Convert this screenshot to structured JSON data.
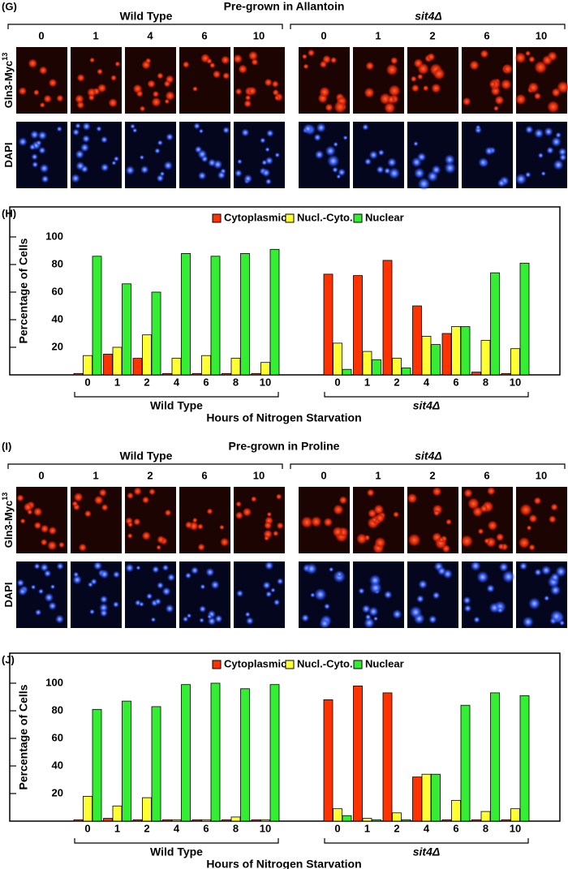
{
  "image_panels": [
    {
      "label": "(G)",
      "title": "Pre-grown in Allantoin",
      "groups": [
        {
          "name": "Wild Type",
          "times": [
            "0",
            "1",
            "4",
            "6",
            "10"
          ]
        },
        {
          "name": "sit4Δ",
          "times": [
            "0",
            "1",
            "2",
            "6",
            "10"
          ]
        }
      ],
      "rows": [
        {
          "text": "Gln3-Myc",
          "sup": "13"
        },
        {
          "text": "DAPI"
        }
      ]
    },
    {
      "label": "(I)",
      "title": "Pre-grown in Proline",
      "groups": [
        {
          "name": "Wild Type",
          "times": [
            "0",
            "1",
            "2",
            "6",
            "10"
          ]
        },
        {
          "name": "sit4Δ",
          "times": [
            "0",
            "1",
            "2",
            "6",
            "10"
          ]
        }
      ],
      "rows": [
        {
          "text": "Gln3-Myc",
          "sup": "13"
        },
        {
          "text": "DAPI"
        }
      ]
    }
  ],
  "chart_data": [
    {
      "type": "bar",
      "label": "(H)",
      "ylabel": "Percentage of Cells",
      "xlabel": "Hours of Nitrogen Starvation",
      "groups": [
        "Wild Type",
        "sit4Δ"
      ],
      "categories": [
        "0",
        "1",
        "2",
        "4",
        "6",
        "8",
        "10",
        "0",
        "1",
        "2",
        "4",
        "6",
        "8",
        "10"
      ],
      "series": [
        {
          "name": "Cytoplasmic",
          "color": "#ff3300",
          "values": [
            1,
            15,
            12,
            1,
            1,
            1,
            1,
            73,
            72,
            83,
            50,
            30,
            2,
            1
          ]
        },
        {
          "name": "Nucl.-Cyto.",
          "color": "#ffff33",
          "values": [
            14,
            20,
            29,
            12,
            14,
            12,
            9,
            23,
            17,
            12,
            28,
            35,
            25,
            19
          ]
        },
        {
          "name": "Nuclear",
          "color": "#33ee33",
          "values": [
            86,
            66,
            60,
            88,
            86,
            88,
            91,
            4,
            11,
            5,
            22,
            35,
            74,
            81
          ]
        }
      ],
      "ylim": [
        0,
        110
      ],
      "yticks": [
        20,
        40,
        60,
        80,
        100
      ],
      "legend": "top"
    },
    {
      "type": "bar",
      "label": "(J)",
      "ylabel": "Percentage of Cells",
      "xlabel": "Hours of Nitrogen Starvation",
      "groups": [
        "Wild Type",
        "sit4Δ"
      ],
      "categories": [
        "0",
        "1",
        "2",
        "4",
        "6",
        "8",
        "10",
        "0",
        "1",
        "2",
        "4",
        "6",
        "8",
        "10"
      ],
      "series": [
        {
          "name": "Cytoplasmic",
          "color": "#ff3300",
          "values": [
            1,
            2,
            1,
            1,
            1,
            1,
            1,
            88,
            98,
            93,
            32,
            1,
            1,
            1
          ]
        },
        {
          "name": "Nucl.-Cyto.",
          "color": "#ffff33",
          "values": [
            18,
            11,
            17,
            1,
            1,
            3,
            1,
            9,
            2,
            6,
            34,
            15,
            7,
            9
          ]
        },
        {
          "name": "Nuclear",
          "color": "#33ee33",
          "values": [
            81,
            87,
            83,
            99,
            100,
            96,
            99,
            4,
            1,
            1,
            34,
            84,
            93,
            91
          ]
        }
      ],
      "ylim": [
        0,
        110
      ],
      "yticks": [
        20,
        40,
        60,
        80,
        100
      ],
      "legend": "top"
    }
  ]
}
